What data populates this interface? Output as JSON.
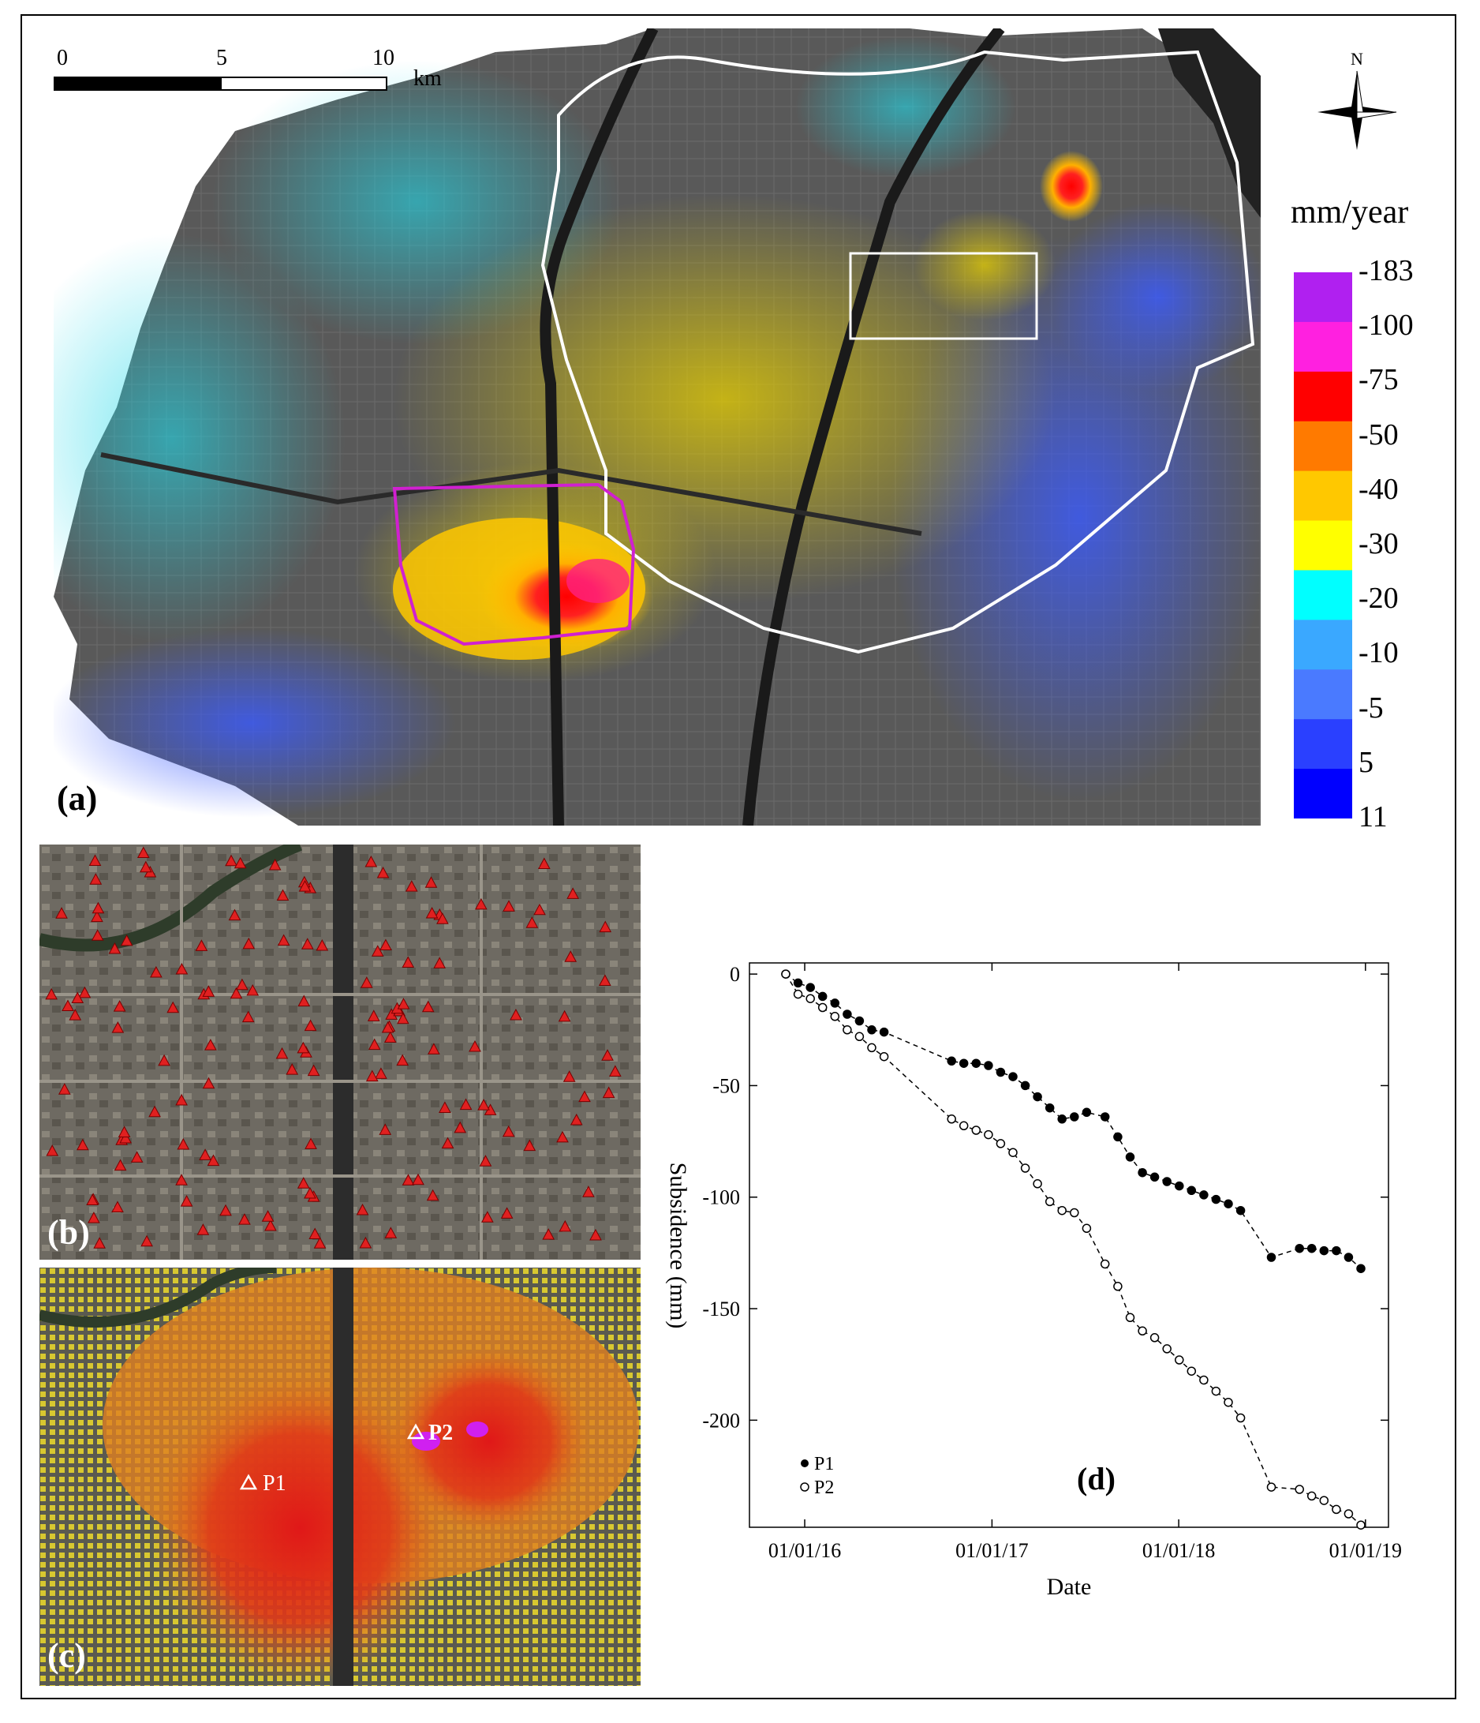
{
  "panel_a": {
    "label": "(a)",
    "scalebar": {
      "ticks": [
        "0",
        "5",
        "10"
      ],
      "unit": "km"
    },
    "north": "N",
    "colorbar": {
      "unit": "mm/year",
      "labels": [
        "-183",
        "-100",
        "-75",
        "-50",
        "-40",
        "-30",
        "-20",
        "-10",
        "-5",
        "5",
        "11"
      ],
      "colors": [
        "#b020f0",
        "#ff20e0",
        "#ff0000",
        "#ff7a00",
        "#ffc800",
        "#ffff00",
        "#00ffff",
        "#3aa8ff",
        "#4a7aff",
        "#2a40ff",
        "#0000ff"
      ]
    }
  },
  "panel_b": {
    "label": "(b)"
  },
  "panel_c": {
    "label": "(c)",
    "points": [
      "P1",
      "P2"
    ]
  },
  "panel_d": {
    "label": "(d)"
  },
  "chart_data": {
    "type": "scatter",
    "xlabel": "Date",
    "ylabel": "Subsidence (mm)",
    "xticks": [
      "01/01/16",
      "01/01/17",
      "01/01/18",
      "01/01/19"
    ],
    "yticks": [
      0,
      -50,
      -100,
      -150,
      -200
    ],
    "ylim": [
      -248,
      5
    ],
    "xlim": [
      "2015-09-15",
      "2019-02-15"
    ],
    "legend_position": "bottom-left",
    "series": [
      {
        "name": "P1",
        "marker": "filled-circle",
        "points": [
          [
            "2015-11-25",
            0
          ],
          [
            "2015-12-19",
            -4
          ],
          [
            "2016-01-12",
            -6
          ],
          [
            "2016-02-05",
            -10
          ],
          [
            "2016-02-29",
            -13
          ],
          [
            "2016-03-24",
            -18
          ],
          [
            "2016-04-17",
            -21
          ],
          [
            "2016-05-11",
            -25
          ],
          [
            "2016-06-04",
            -26
          ],
          [
            "2016-10-14",
            -39
          ],
          [
            "2016-11-07",
            -40
          ],
          [
            "2016-12-01",
            -40
          ],
          [
            "2016-12-25",
            -41
          ],
          [
            "2017-01-18",
            -44
          ],
          [
            "2017-02-11",
            -46
          ],
          [
            "2017-03-07",
            -50
          ],
          [
            "2017-03-31",
            -55
          ],
          [
            "2017-04-24",
            -60
          ],
          [
            "2017-05-18",
            -65
          ],
          [
            "2017-06-11",
            -64
          ],
          [
            "2017-07-05",
            -62
          ],
          [
            "2017-08-10",
            -64
          ],
          [
            "2017-09-04",
            -73
          ],
          [
            "2017-09-28",
            -82
          ],
          [
            "2017-10-22",
            -89
          ],
          [
            "2017-11-15",
            -91
          ],
          [
            "2017-12-09",
            -93
          ],
          [
            "2018-01-02",
            -95
          ],
          [
            "2018-01-26",
            -97
          ],
          [
            "2018-02-19",
            -99
          ],
          [
            "2018-03-15",
            -101
          ],
          [
            "2018-04-08",
            -103
          ],
          [
            "2018-05-02",
            -106
          ],
          [
            "2018-07-01",
            -127
          ],
          [
            "2018-08-25",
            -123
          ],
          [
            "2018-09-18",
            -123
          ],
          [
            "2018-10-12",
            -124
          ],
          [
            "2018-11-05",
            -124
          ],
          [
            "2018-11-29",
            -127
          ],
          [
            "2018-12-23",
            -132
          ]
        ]
      },
      {
        "name": "P2",
        "marker": "open-circle",
        "points": [
          [
            "2015-11-25",
            0
          ],
          [
            "2015-12-19",
            -9
          ],
          [
            "2016-01-12",
            -11
          ],
          [
            "2016-02-05",
            -15
          ],
          [
            "2016-02-29",
            -19
          ],
          [
            "2016-03-24",
            -25
          ],
          [
            "2016-04-17",
            -28
          ],
          [
            "2016-05-11",
            -33
          ],
          [
            "2016-06-04",
            -37
          ],
          [
            "2016-10-14",
            -65
          ],
          [
            "2016-11-07",
            -68
          ],
          [
            "2016-12-01",
            -70
          ],
          [
            "2016-12-25",
            -72
          ],
          [
            "2017-01-18",
            -76
          ],
          [
            "2017-02-11",
            -80
          ],
          [
            "2017-03-07",
            -87
          ],
          [
            "2017-03-31",
            -94
          ],
          [
            "2017-04-24",
            -102
          ],
          [
            "2017-05-18",
            -106
          ],
          [
            "2017-06-11",
            -107
          ],
          [
            "2017-07-05",
            -114
          ],
          [
            "2017-08-10",
            -130
          ],
          [
            "2017-09-04",
            -140
          ],
          [
            "2017-09-28",
            -154
          ],
          [
            "2017-10-22",
            -160
          ],
          [
            "2017-11-15",
            -163
          ],
          [
            "2017-12-09",
            -168
          ],
          [
            "2018-01-02",
            -173
          ],
          [
            "2018-01-26",
            -178
          ],
          [
            "2018-02-19",
            -182
          ],
          [
            "2018-03-15",
            -187
          ],
          [
            "2018-04-08",
            -192
          ],
          [
            "2018-05-02",
            -199
          ],
          [
            "2018-07-01",
            -230
          ],
          [
            "2018-08-25",
            -231
          ],
          [
            "2018-09-18",
            -234
          ],
          [
            "2018-10-12",
            -236
          ],
          [
            "2018-11-05",
            -240
          ],
          [
            "2018-11-29",
            -242
          ],
          [
            "2018-12-23",
            -247
          ]
        ]
      }
    ]
  }
}
